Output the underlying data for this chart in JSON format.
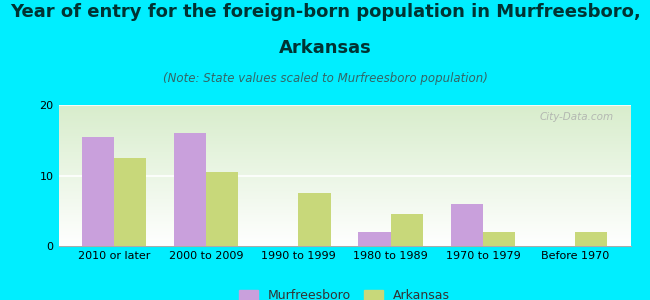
{
  "categories": [
    "2010 or later",
    "2000 to 2009",
    "1990 to 1999",
    "1980 to 1989",
    "1970 to 1979",
    "Before 1970"
  ],
  "murfreesboro_values": [
    15.5,
    16,
    0,
    2,
    6,
    0
  ],
  "arkansas_values": [
    12.5,
    10.5,
    7.5,
    4.5,
    2,
    2
  ],
  "murfreesboro_color": "#c9a0dc",
  "arkansas_color": "#c8d87a",
  "title_line1": "Year of entry for the foreign-born population in Murfreesboro,",
  "title_line2": "Arkansas",
  "subtitle": "(Note: State values scaled to Murfreesboro population)",
  "ylim": [
    0,
    20
  ],
  "yticks": [
    0,
    10,
    20
  ],
  "background_outer": "#00eeff",
  "background_inner_top": "#ffffff",
  "background_inner_bottom": "#d8edcc",
  "watermark": "City-Data.com",
  "legend_murfreesboro": "Murfreesboro",
  "legend_arkansas": "Arkansas",
  "title_fontsize": 13,
  "subtitle_fontsize": 8.5,
  "bar_width": 0.35
}
